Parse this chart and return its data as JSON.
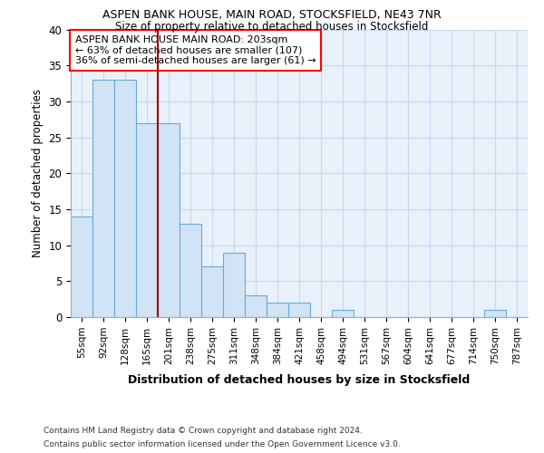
{
  "title1": "ASPEN BANK HOUSE, MAIN ROAD, STOCKSFIELD, NE43 7NR",
  "title2": "Size of property relative to detached houses in Stocksfield",
  "xlabel": "Distribution of detached houses by size in Stocksfield",
  "ylabel": "Number of detached properties",
  "bar_color": "#d0e4f5",
  "bar_edge_color": "#6aaad4",
  "vline_color": "#990000",
  "grid_color": "#c5d8ee",
  "background_color": "#e8f1fa",
  "categories": [
    "55sqm",
    "92sqm",
    "128sqm",
    "165sqm",
    "201sqm",
    "238sqm",
    "275sqm",
    "311sqm",
    "348sqm",
    "384sqm",
    "421sqm",
    "458sqm",
    "494sqm",
    "531sqm",
    "567sqm",
    "604sqm",
    "641sqm",
    "677sqm",
    "714sqm",
    "750sqm",
    "787sqm"
  ],
  "values": [
    14,
    33,
    33,
    27,
    27,
    13,
    7,
    9,
    3,
    2,
    2,
    0,
    1,
    0,
    0,
    0,
    0,
    0,
    0,
    1,
    0
  ],
  "vline_after_index": 3,
  "annotation_title": "ASPEN BANK HOUSE MAIN ROAD: 203sqm",
  "annotation_line1": "← 63% of detached houses are smaller (107)",
  "annotation_line2": "36% of semi-detached houses are larger (61) →",
  "footnote1": "Contains HM Land Registry data © Crown copyright and database right 2024.",
  "footnote2": "Contains public sector information licensed under the Open Government Licence v3.0.",
  "ylim": [
    0,
    40
  ],
  "yticks": [
    0,
    5,
    10,
    15,
    20,
    25,
    30,
    35,
    40
  ]
}
